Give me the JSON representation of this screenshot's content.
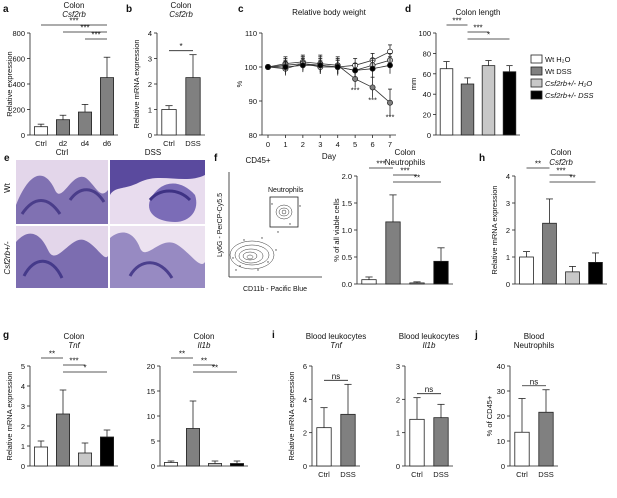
{
  "figure": {
    "colors": {
      "wt_h2o": "#ffffff",
      "wt_dss": "#808080",
      "het_h2o": "#c8c8c8",
      "het_dss": "#000000",
      "histology_purple": "#6b5aa6",
      "histology_pink": "#d9c7e3"
    }
  },
  "panel_e": {
    "letter": "e",
    "col_labels": [
      "Ctrl",
      "DSS"
    ],
    "row_labels": [
      "Wt",
      "Csf2rb+/-"
    ]
  },
  "panel_f": {
    "letter": "f",
    "flow": {
      "title": "CD45+",
      "gate_label": "Neutrophils",
      "ylabel": "Ly6G - PerCP-Cy5.5",
      "xlabel": "CD11b - Pacific Blue"
    }
  },
  "chart_data": [
    {
      "id": "a",
      "letter": "a",
      "type": "bar",
      "title": "Colon",
      "title2": "Csf2rb",
      "ylabel": "Relative expression",
      "xlabel": "",
      "ylim": [
        0,
        800
      ],
      "yticks": [
        0,
        200,
        400,
        600,
        800
      ],
      "categories": [
        "Ctrl",
        "d2",
        "d4",
        "d6"
      ],
      "values": [
        65,
        120,
        180,
        450
      ],
      "errors": [
        20,
        35,
        60,
        160
      ],
      "colors": [
        "#ffffff",
        "#808080",
        "#808080",
        "#808080"
      ],
      "significance": [
        {
          "from": 0,
          "to": 3,
          "label": "***"
        },
        {
          "from": 1,
          "to": 3,
          "label": "***"
        },
        {
          "from": 2,
          "to": 3,
          "label": "***"
        }
      ]
    },
    {
      "id": "b",
      "letter": "b",
      "type": "bar",
      "title": "Colon",
      "title2": "Csf2rb",
      "ylabel": "Relative mRNA expression",
      "xlabel": "",
      "ylim": [
        0,
        4
      ],
      "yticks": [
        0,
        1,
        2,
        3,
        4
      ],
      "categories": [
        "Ctrl",
        "DSS"
      ],
      "values": [
        1.0,
        2.25
      ],
      "errors": [
        0.15,
        0.9
      ],
      "colors": [
        "#ffffff",
        "#808080"
      ],
      "significance": [
        {
          "from": 0,
          "to": 1,
          "label": "*"
        }
      ]
    },
    {
      "id": "c",
      "letter": "c",
      "type": "line",
      "title": "Relative body weight",
      "ylabel": "%",
      "xlabel": "Day",
      "ylim": [
        80,
        110
      ],
      "yticks": [
        80,
        90,
        100,
        110
      ],
      "x": [
        0,
        1,
        2,
        3,
        4,
        5,
        6,
        7
      ],
      "series": [
        {
          "key": "wt_h2o",
          "values": [
            100,
            100.5,
            101,
            100.5,
            100,
            100.5,
            102,
            104.5
          ],
          "errors": [
            0.5,
            2,
            2,
            2.5,
            2.5,
            2,
            2,
            2
          ],
          "fill": "#ffffff"
        },
        {
          "key": "wt_dss",
          "values": [
            100,
            101,
            101.5,
            101,
            100.5,
            96.5,
            94,
            89.5
          ],
          "errors": [
            0.5,
            2,
            2,
            2.5,
            2.5,
            2.5,
            3,
            4
          ],
          "fill": "#808080"
        },
        {
          "key": "het_h2o",
          "values": [
            100,
            99.5,
            101,
            100,
            100,
            99,
            100.5,
            102
          ],
          "errors": [
            0.5,
            2,
            2,
            2,
            2,
            2,
            2,
            2
          ],
          "fill": "#c8c8c8"
        },
        {
          "key": "het_dss",
          "values": [
            100,
            100,
            100.5,
            100.5,
            100,
            99,
            99.5,
            100.5
          ],
          "errors": [
            0.5,
            2,
            2,
            2,
            2,
            2,
            2.5,
            2.5
          ],
          "fill": "#000000"
        }
      ],
      "annotations": [
        {
          "x": 5,
          "y": 92.5,
          "label": "***"
        },
        {
          "x": 6,
          "y": 89.5,
          "label": "***"
        },
        {
          "x": 7,
          "y": 84.5,
          "label": "***"
        }
      ]
    },
    {
      "id": "d",
      "letter": "d",
      "type": "bar",
      "title": "Colon length",
      "ylabel": "mm",
      "xlabel": "",
      "ylim": [
        0,
        100
      ],
      "yticks": [
        0,
        20,
        40,
        60,
        80,
        100
      ],
      "categories": [
        "Wt H2O",
        "Wt DSS",
        "Csf2rb+/- H2O",
        "Csf2rb+/- DSS"
      ],
      "values": [
        65,
        50,
        68,
        62
      ],
      "errors": [
        7,
        6,
        5,
        6
      ],
      "colors": [
        "#ffffff",
        "#808080",
        "#c8c8c8",
        "#000000"
      ],
      "significance": [
        {
          "from": 0,
          "to": 1,
          "label": "***"
        },
        {
          "from": 1,
          "to": 2,
          "label": "***"
        },
        {
          "from": 1,
          "to": 3,
          "label": "*"
        }
      ],
      "legend": [
        {
          "text": "Wt H₂O",
          "fill": "#ffffff"
        },
        {
          "text": "Wt DSS",
          "fill": "#808080"
        },
        {
          "text": "Csf2rb+/- H₂O",
          "fill": "#c8c8c8"
        },
        {
          "text": "Csf2rb+/- DSS",
          "fill": "#000000"
        }
      ]
    },
    {
      "id": "f",
      "letter": "",
      "type": "bar",
      "title": "Colon",
      "title2": "Neutrophils",
      "ylabel": "% of all viable cells",
      "xlabel": "",
      "ylim": [
        0,
        2.0
      ],
      "yticks": [
        0.0,
        0.5,
        1.0,
        1.5,
        2.0
      ],
      "categories": [
        "Wt H2O",
        "Wt DSS",
        "Csf2rb+/- H2O",
        "Csf2rb+/- DSS"
      ],
      "values": [
        0.08,
        1.15,
        0.02,
        0.42
      ],
      "errors": [
        0.05,
        0.5,
        0.02,
        0.25
      ],
      "colors": [
        "#ffffff",
        "#808080",
        "#c8c8c8",
        "#000000"
      ],
      "significance": [
        {
          "from": 0,
          "to": 1,
          "label": "***"
        },
        {
          "from": 1,
          "to": 2,
          "label": "***"
        },
        {
          "from": 1,
          "to": 3,
          "label": "**"
        }
      ]
    },
    {
      "id": "h",
      "letter": "h",
      "type": "bar",
      "title": "Colon",
      "title2": "Csf2rb",
      "ylabel": "Relative mRNA expression",
      "xlabel": "",
      "ylim": [
        0,
        4
      ],
      "yticks": [
        0,
        1,
        2,
        3,
        4
      ],
      "categories": [
        "Wt H2O",
        "Wt DSS",
        "Csf2rb+/- H2O",
        "Csf2rb+/- DSS"
      ],
      "values": [
        1.0,
        2.25,
        0.45,
        0.8
      ],
      "errors": [
        0.2,
        0.9,
        0.2,
        0.35
      ],
      "colors": [
        "#ffffff",
        "#808080",
        "#c8c8c8",
        "#000000"
      ],
      "significance": [
        {
          "from": 0,
          "to": 1,
          "label": "**"
        },
        {
          "from": 1,
          "to": 2,
          "label": "***"
        },
        {
          "from": 1,
          "to": 3,
          "label": "**"
        }
      ]
    },
    {
      "id": "g1",
      "letter": "g",
      "type": "bar",
      "title": "Colon",
      "title2": "Tnf",
      "ylabel": "Relative mRNA expression",
      "xlabel": "",
      "ylim": [
        0,
        5
      ],
      "yticks": [
        0,
        1,
        2,
        3,
        4,
        5
      ],
      "categories": [
        "Wt H2O",
        "Wt DSS",
        "Csf2rb+/- H2O",
        "Csf2rb+/- DSS"
      ],
      "values": [
        0.95,
        2.6,
        0.65,
        1.45
      ],
      "errors": [
        0.3,
        1.2,
        0.5,
        0.35
      ],
      "colors": [
        "#ffffff",
        "#808080",
        "#c8c8c8",
        "#000000"
      ],
      "significance": [
        {
          "from": 0,
          "to": 1,
          "label": "**"
        },
        {
          "from": 1,
          "to": 2,
          "label": "***"
        },
        {
          "from": 1,
          "to": 3,
          "label": "*"
        }
      ]
    },
    {
      "id": "g2",
      "letter": "",
      "type": "bar",
      "title": "Colon",
      "title2": "Il1b",
      "ylabel": "",
      "xlabel": "",
      "ylim": [
        0,
        20
      ],
      "yticks": [
        0,
        5,
        10,
        15,
        20
      ],
      "categories": [
        "Wt H2O",
        "Wt DSS",
        "Csf2rb+/- H2O",
        "Csf2rb+/- DSS"
      ],
      "values": [
        0.7,
        7.5,
        0.5,
        0.5
      ],
      "errors": [
        0.3,
        5.5,
        0.5,
        0.5
      ],
      "colors": [
        "#ffffff",
        "#808080",
        "#c8c8c8",
        "#000000"
      ],
      "significance": [
        {
          "from": 0,
          "to": 1,
          "label": "**"
        },
        {
          "from": 1,
          "to": 2,
          "label": "**"
        },
        {
          "from": 1,
          "to": 3,
          "label": "**"
        }
      ]
    },
    {
      "id": "i1",
      "letter": "i",
      "type": "bar",
      "title": "Blood leukocytes",
      "title2": "Tnf",
      "ylabel": "Relative mRNA expression",
      "xlabel": "",
      "ylim": [
        0,
        6
      ],
      "yticks": [
        0,
        2,
        4,
        6
      ],
      "categories": [
        "Ctrl",
        "DSS"
      ],
      "values": [
        2.3,
        3.1
      ],
      "errors": [
        1.2,
        1.8
      ],
      "colors": [
        "#ffffff",
        "#808080"
      ],
      "significance": [
        {
          "from": 0,
          "to": 1,
          "label": "ns"
        }
      ]
    },
    {
      "id": "i2",
      "letter": "",
      "type": "bar",
      "title": "Blood leukocytes",
      "title2": "Il1b",
      "ylabel": "",
      "xlabel": "",
      "ylim": [
        0,
        3
      ],
      "yticks": [
        0,
        1,
        2,
        3
      ],
      "categories": [
        "Ctrl",
        "DSS"
      ],
      "values": [
        1.4,
        1.45
      ],
      "errors": [
        0.65,
        0.4
      ],
      "colors": [
        "#ffffff",
        "#808080"
      ],
      "significance": [
        {
          "from": 0,
          "to": 1,
          "label": "ns"
        }
      ]
    },
    {
      "id": "j",
      "letter": "j",
      "type": "bar",
      "title": "Blood",
      "title2": "Neutrophils",
      "ylabel": "% of CD45+",
      "xlabel": "",
      "ylim": [
        0,
        40
      ],
      "yticks": [
        0,
        10,
        20,
        30,
        40
      ],
      "categories": [
        "Ctrl",
        "DSS"
      ],
      "values": [
        13.5,
        21.5
      ],
      "errors": [
        13.5,
        9
      ],
      "colors": [
        "#ffffff",
        "#808080"
      ],
      "significance": [
        {
          "from": 0,
          "to": 1,
          "label": "ns"
        }
      ]
    }
  ]
}
